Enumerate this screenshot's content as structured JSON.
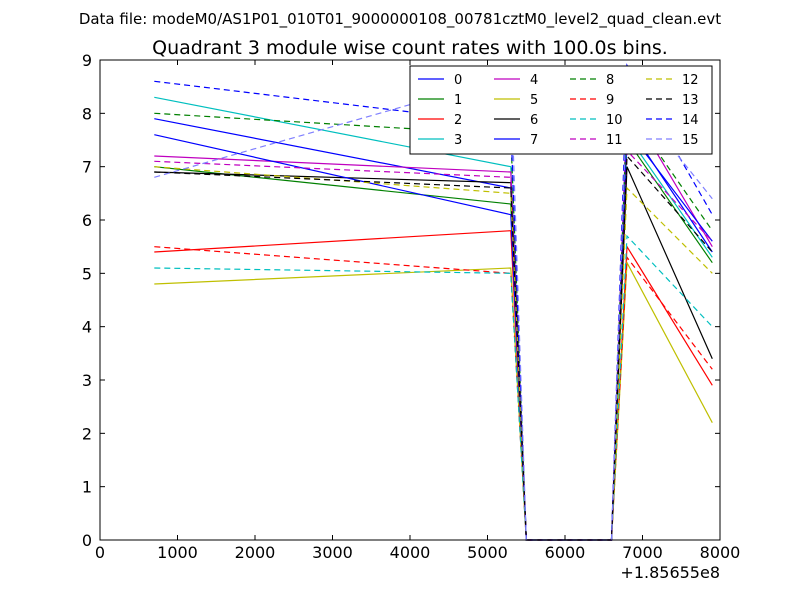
{
  "chart_data": {
    "type": "line",
    "suptitle": "Data file: modeM0/AS1P01_010T01_9000000108_00781cztM0_level2_quad_clean.evt",
    "title": "Quadrant 3 module wise count rates with 100.0s bins.",
    "xlabel": "",
    "ylabel": "",
    "x_offset_label": "+1.85655e8",
    "xlim": [
      0,
      8000
    ],
    "ylim": [
      0,
      9
    ],
    "xticks": [
      "0",
      "1000",
      "2000",
      "3000",
      "4000",
      "5000",
      "6000",
      "7000",
      "8000"
    ],
    "yticks": [
      "0",
      "1",
      "2",
      "3",
      "4",
      "5",
      "6",
      "7",
      "8",
      "9"
    ],
    "legend_location": "top-right",
    "x": [
      700,
      5300,
      5500,
      6600,
      6800,
      7900
    ],
    "series": [
      {
        "name": "0",
        "color": "#0000ff",
        "dash": "solid",
        "values": [
          7.9,
          6.6,
          0,
          0,
          7.8,
          5.4
        ]
      },
      {
        "name": "1",
        "color": "#008000",
        "dash": "solid",
        "values": [
          7.0,
          6.3,
          0,
          0,
          7.5,
          5.2
        ]
      },
      {
        "name": "2",
        "color": "#ff0000",
        "dash": "solid",
        "values": [
          5.4,
          5.8,
          0,
          0,
          5.5,
          2.9
        ]
      },
      {
        "name": "3",
        "color": "#00bfbf",
        "dash": "solid",
        "values": [
          8.3,
          7.0,
          0,
          0,
          7.6,
          5.3
        ]
      },
      {
        "name": "4",
        "color": "#bf00bf",
        "dash": "solid",
        "values": [
          7.2,
          6.9,
          0,
          0,
          8.2,
          5.5
        ]
      },
      {
        "name": "5",
        "color": "#bfbf00",
        "dash": "solid",
        "values": [
          4.8,
          5.1,
          0,
          0,
          5.2,
          2.2
        ]
      },
      {
        "name": "6",
        "color": "#000000",
        "dash": "solid",
        "values": [
          6.9,
          6.7,
          0,
          0,
          7.0,
          3.4
        ]
      },
      {
        "name": "7",
        "color": "#0000ff",
        "dash": "solid",
        "values": [
          7.6,
          6.1,
          0,
          0,
          7.7,
          5.6
        ]
      },
      {
        "name": "8",
        "color": "#008000",
        "dash": "dashed",
        "values": [
          8.0,
          7.6,
          0,
          0,
          8.1,
          5.8
        ]
      },
      {
        "name": "9",
        "color": "#ff0000",
        "dash": "dashed",
        "values": [
          5.5,
          5.0,
          0,
          0,
          5.3,
          3.2
        ]
      },
      {
        "name": "10",
        "color": "#00bfbf",
        "dash": "dashed",
        "values": [
          5.1,
          5.0,
          0,
          0,
          5.7,
          4.0
        ]
      },
      {
        "name": "11",
        "color": "#bf00bf",
        "dash": "dashed",
        "values": [
          7.1,
          6.8,
          0,
          0,
          7.3,
          5.6
        ]
      },
      {
        "name": "12",
        "color": "#bfbf00",
        "dash": "dashed",
        "values": [
          7.0,
          6.5,
          0,
          0,
          6.6,
          5.0
        ]
      },
      {
        "name": "13",
        "color": "#000000",
        "dash": "dashed",
        "values": [
          6.9,
          6.6,
          0,
          0,
          7.2,
          5.4
        ]
      },
      {
        "name": "14",
        "color": "#0000ff",
        "dash": "dashed",
        "values": [
          8.6,
          7.8,
          0,
          0,
          8.9,
          6.1
        ]
      },
      {
        "name": "15",
        "color": "#7f7fff",
        "dash": "dashed",
        "values": [
          6.8,
          8.7,
          0,
          0,
          8.4,
          6.4
        ]
      }
    ]
  }
}
